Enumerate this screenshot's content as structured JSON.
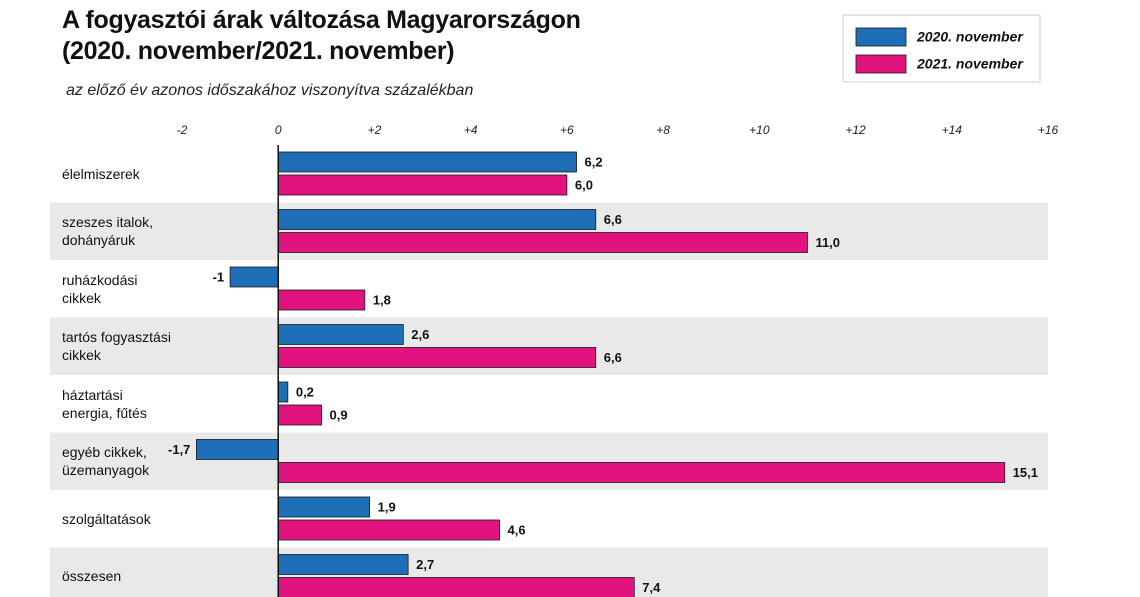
{
  "chart_data": {
    "type": "bar",
    "orientation": "horizontal",
    "title": [
      "A fogyasztói árak változása Magyarországon",
      "(2020. november/2021. november)"
    ],
    "subtitle": "az előző év azonos időszakához viszonyítva százalékban",
    "categories": [
      "élelmiszerek",
      "szeszes italok, dohányáruk",
      "ruházkodási cikkek",
      "tartós fogyasztási cikkek",
      "háztartási energia, fűtés",
      "egyéb cikkek, üzemanyagok",
      "szolgáltatások",
      "összesen"
    ],
    "series": [
      {
        "name": "2020. november",
        "color": "#1f6fb8",
        "values": [
          6.2,
          6.6,
          -1,
          2.6,
          0.2,
          -1.7,
          1.9,
          2.7
        ],
        "value_labels": [
          "6,2",
          "6,6",
          "-1",
          "2,6",
          "0,2",
          "-1,7",
          "1,9",
          "2,7"
        ]
      },
      {
        "name": "2021. november",
        "color": "#e2127f",
        "values": [
          6.0,
          11.0,
          1.8,
          6.6,
          0.9,
          15.1,
          4.6,
          7.4
        ],
        "value_labels": [
          "6,0",
          "11,0",
          "1,8",
          "6,6",
          "0,9",
          "15,1",
          "4,6",
          "7,4"
        ]
      }
    ],
    "xlim": [
      -2,
      16
    ],
    "xticks": [
      -2,
      0,
      {
        "value": 2,
        "label": "+2"
      },
      {
        "value": 4,
        "label": "+4"
      },
      {
        "value": 6,
        "label": "+6"
      },
      {
        "value": 8,
        "label": "+8"
      },
      {
        "value": 10,
        "label": "+10"
      },
      {
        "value": 12,
        "label": "+12"
      },
      {
        "value": 14,
        "label": "+14"
      },
      {
        "value": 16,
        "label": "+16"
      }
    ],
    "legend": "upper right",
    "grid": false
  }
}
